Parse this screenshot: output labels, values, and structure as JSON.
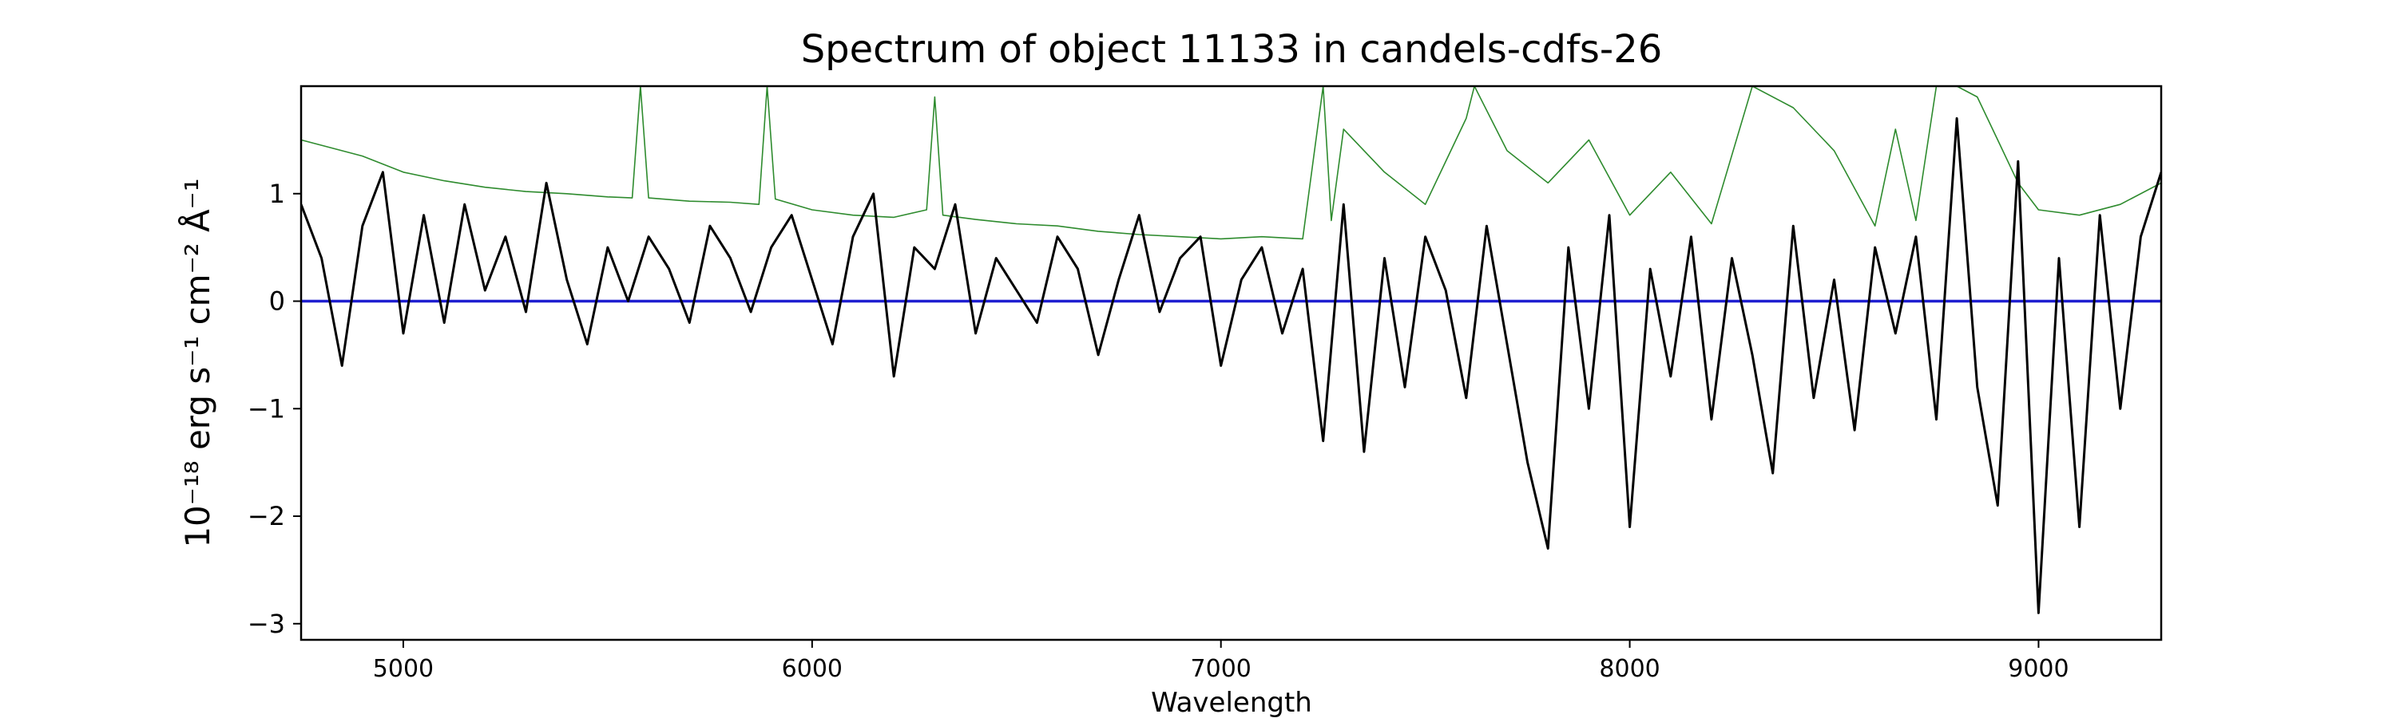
{
  "chart_data": {
    "type": "line",
    "title": "Spectrum of object 11133 in candels-cdfs-26",
    "xlabel": "Wavelength",
    "ylabel": "10⁻¹⁸ erg s⁻¹ cm⁻² Å⁻¹",
    "xlim": [
      4750,
      9300
    ],
    "ylim": [
      -3.15,
      2.0
    ],
    "xticks": [
      5000,
      6000,
      7000,
      8000,
      9000
    ],
    "xtick_labels": [
      "5000",
      "6000",
      "7000",
      "8000",
      "9000"
    ],
    "yticks": [
      -3,
      -2,
      -1,
      0,
      1
    ],
    "ytick_labels": [
      "−3",
      "−2",
      "−1",
      "0",
      "1"
    ],
    "grid": false,
    "legend": "none",
    "colors": {
      "flux": "#000000",
      "noise": "#2e8b2e",
      "zero": "#1f1fd0"
    },
    "series": [
      {
        "role": "flux",
        "color": "#000000",
        "x": [
          4750,
          4800,
          4850,
          4900,
          4950,
          5000,
          5050,
          5100,
          5150,
          5200,
          5250,
          5300,
          5350,
          5400,
          5450,
          5500,
          5550,
          5600,
          5650,
          5700,
          5750,
          5800,
          5850,
          5900,
          5950,
          6000,
          6050,
          6100,
          6150,
          6200,
          6250,
          6300,
          6350,
          6400,
          6450,
          6500,
          6550,
          6600,
          6650,
          6700,
          6750,
          6800,
          6850,
          6900,
          6950,
          7000,
          7050,
          7100,
          7150,
          7200,
          7250,
          7300,
          7350,
          7400,
          7450,
          7500,
          7550,
          7600,
          7650,
          7700,
          7750,
          7800,
          7850,
          7900,
          7950,
          8000,
          8050,
          8100,
          8150,
          8200,
          8250,
          8300,
          8350,
          8400,
          8450,
          8500,
          8550,
          8600,
          8650,
          8700,
          8750,
          8800,
          8850,
          8900,
          8950,
          9000,
          9050,
          9100,
          9150,
          9200,
          9250,
          9300
        ],
        "y": [
          0.9,
          0.4,
          -0.6,
          0.7,
          1.2,
          -0.3,
          0.8,
          -0.2,
          0.9,
          0.1,
          0.6,
          -0.1,
          1.1,
          0.2,
          -0.4,
          0.5,
          0.0,
          0.6,
          0.3,
          -0.2,
          0.7,
          0.4,
          -0.1,
          0.5,
          0.8,
          0.2,
          -0.4,
          0.6,
          1.0,
          -0.7,
          0.5,
          0.3,
          0.9,
          -0.3,
          0.4,
          0.1,
          -0.2,
          0.6,
          0.3,
          -0.5,
          0.2,
          0.8,
          -0.1,
          0.4,
          0.6,
          -0.6,
          0.2,
          0.5,
          -0.3,
          0.3,
          -1.3,
          0.9,
          -1.4,
          0.4,
          -0.8,
          0.6,
          0.1,
          -0.9,
          0.7,
          -0.4,
          -1.5,
          -2.3,
          0.5,
          -1.0,
          0.8,
          -2.1,
          0.3,
          -0.7,
          0.6,
          -1.1,
          0.4,
          -0.5,
          -1.6,
          0.7,
          -0.9,
          0.2,
          -1.2,
          0.5,
          -0.3,
          0.6,
          -1.1,
          1.7,
          -0.8,
          -1.9,
          1.3,
          -2.9,
          0.4,
          -2.1,
          0.8,
          -1.0,
          0.6,
          1.2
        ]
      },
      {
        "role": "noise",
        "color": "#2e8b2e",
        "x": [
          4750,
          4800,
          4900,
          5000,
          5100,
          5200,
          5300,
          5400,
          5500,
          5560,
          5580,
          5600,
          5700,
          5800,
          5870,
          5890,
          5910,
          6000,
          6100,
          6200,
          6280,
          6300,
          6320,
          6400,
          6500,
          6600,
          6700,
          6800,
          6900,
          7000,
          7100,
          7200,
          7250,
          7270,
          7300,
          7400,
          7500,
          7600,
          7620,
          7700,
          7800,
          7900,
          8000,
          8100,
          8200,
          8300,
          8400,
          8500,
          8600,
          8650,
          8700,
          8750,
          8800,
          8850,
          8900,
          8950,
          9000,
          9100,
          9200,
          9300
        ],
        "y": [
          1.5,
          1.45,
          1.35,
          1.2,
          1.12,
          1.06,
          1.02,
          1.0,
          0.97,
          0.96,
          2.0,
          0.96,
          0.93,
          0.92,
          0.9,
          2.0,
          0.95,
          0.85,
          0.8,
          0.78,
          0.85,
          1.9,
          0.8,
          0.76,
          0.72,
          0.7,
          0.65,
          0.62,
          0.6,
          0.58,
          0.6,
          0.58,
          2.0,
          0.75,
          1.6,
          1.2,
          0.9,
          1.7,
          2.0,
          1.4,
          1.1,
          1.5,
          0.8,
          1.2,
          0.72,
          2.0,
          1.8,
          1.4,
          0.7,
          1.6,
          0.75,
          2.0,
          2.0,
          1.9,
          1.5,
          1.1,
          0.85,
          0.8,
          0.9,
          1.1
        ]
      },
      {
        "role": "zero",
        "color": "#1f1fd0",
        "x": [
          4750,
          9300
        ],
        "y": [
          0,
          0
        ]
      }
    ]
  }
}
